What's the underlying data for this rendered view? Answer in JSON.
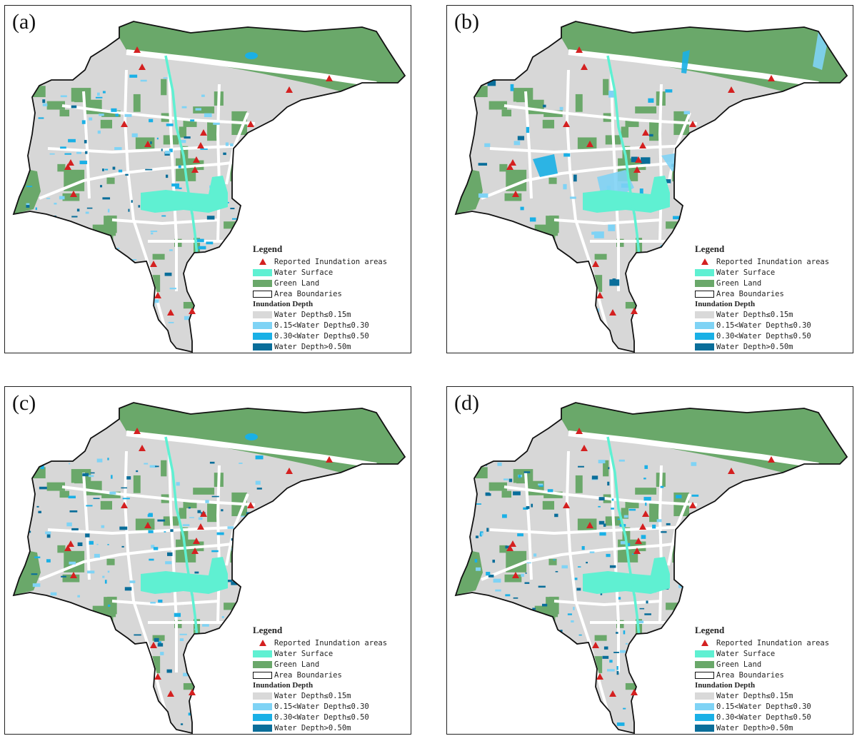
{
  "panels": [
    {
      "label": "(a)",
      "variant": "a"
    },
    {
      "label": "(b)",
      "variant": "b"
    },
    {
      "label": "(c)",
      "variant": "c"
    },
    {
      "label": "(d)",
      "variant": "d"
    }
  ],
  "legend": {
    "title": "Legend",
    "reported": "Reported Inundation areas",
    "water_surface": "Water Surface",
    "green_land": "Green Land",
    "area_boundaries": "Area Boundaries",
    "depth_title": "Inundation Depth",
    "depth_classes": [
      "Water Depth≤0.15m",
      "0.15<Water Depth≤0.30",
      "0.30<Water Depth≤0.50",
      "Water Depth>0.50m"
    ]
  },
  "colors": {
    "urban": "#d7d7d7",
    "green": "#6aa86a",
    "water": "#5ff0d2",
    "depth": [
      "#d9d9d9",
      "#7fd3f5",
      "#1ab0e6",
      "#0a6e9a"
    ],
    "marker": "#d42020",
    "boundary": "#111111"
  }
}
